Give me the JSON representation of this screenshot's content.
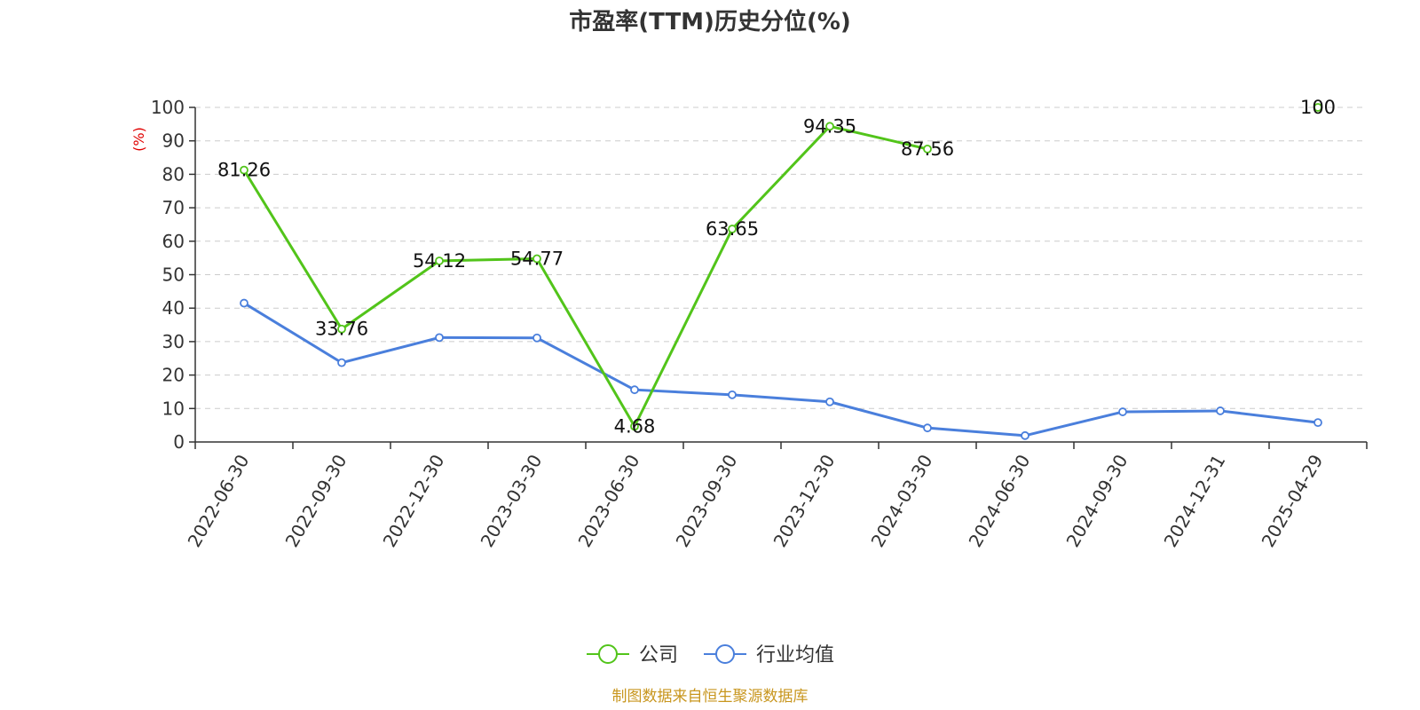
{
  "chart_data": {
    "type": "line",
    "title": "市盈率(TTM)历史分位(%)",
    "ylabel": "(%)",
    "ylim": [
      0,
      100
    ],
    "yticks": [
      0,
      10,
      20,
      30,
      40,
      50,
      60,
      70,
      80,
      90,
      100
    ],
    "categories": [
      "2022-06-30",
      "2022-09-30",
      "2022-12-30",
      "2023-03-30",
      "2023-06-30",
      "2023-09-30",
      "2023-12-30",
      "2024-03-30",
      "2024-06-30",
      "2024-09-30",
      "2024-12-31",
      "2025-04-29"
    ],
    "grid": true,
    "legend_position": "bottom",
    "series": [
      {
        "name": "公司",
        "color": "#52c41a",
        "values": [
          81.26,
          33.76,
          54.12,
          54.77,
          4.68,
          63.65,
          94.35,
          87.56,
          null,
          null,
          null,
          100
        ],
        "show_labels": true
      },
      {
        "name": "行业均值",
        "color": "#4a7fdc",
        "values": [
          41.5,
          23.7,
          31.2,
          31.1,
          15.6,
          14.1,
          12.0,
          4.2,
          1.9,
          9.0,
          9.3,
          5.8
        ],
        "show_labels": false
      }
    ]
  },
  "source": "制图数据来自恒生聚源数据库"
}
